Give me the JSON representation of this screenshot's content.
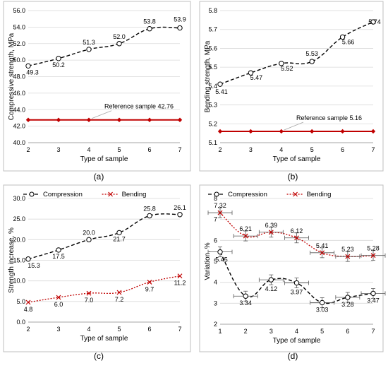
{
  "chart_data": [
    {
      "id": "a",
      "type": "line",
      "panel_label": "(a)",
      "xlabel": "Type of sample",
      "ylabel": "Compressive strength, MPa",
      "x": [
        2,
        3,
        4,
        5,
        6,
        7
      ],
      "xlim": [
        2,
        7
      ],
      "ylim": [
        40,
        56
      ],
      "yticks": [
        40,
        42,
        44,
        46,
        48,
        50,
        52,
        54,
        56
      ],
      "ytick_labels": [
        "40.0",
        "42.0",
        "44.0",
        "46.0",
        "48.0",
        "50.0",
        "52.0",
        "54.0",
        "56.0"
      ],
      "series": [
        {
          "values": [
            49.3,
            50.2,
            51.3,
            52.0,
            53.8,
            53.9
          ],
          "labels": [
            "49.3",
            "50.2",
            "51.3",
            "52.0",
            "53.8",
            "53.9"
          ],
          "style": "dashed",
          "color": "#000000",
          "marker": "circle"
        },
        {
          "values": [
            42.76,
            42.76,
            42.76,
            42.76,
            42.76,
            42.76
          ],
          "style": "solid",
          "color": "#c00000",
          "marker": "diamond"
        }
      ],
      "annotation": "Reference sample 42.76",
      "grid": true
    },
    {
      "id": "b",
      "type": "line",
      "panel_label": "(b)",
      "xlabel": "Type of sample",
      "ylabel": "Bending strength, MPa",
      "x": [
        2,
        3,
        4,
        5,
        6,
        7
      ],
      "xlim": [
        2,
        7
      ],
      "ylim": [
        5.1,
        5.8
      ],
      "yticks": [
        5.1,
        5.2,
        5.3,
        5.4,
        5.5,
        5.6,
        5.7,
        5.8
      ],
      "ytick_labels": [
        "5.1",
        "5.2",
        "5.3",
        "5.4",
        "5.5",
        "5.6",
        "5.7",
        "5.8"
      ],
      "series": [
        {
          "values": [
            5.41,
            5.47,
            5.52,
            5.53,
            5.66,
            5.74
          ],
          "labels": [
            "5.41",
            "5.47",
            "5.52",
            "5.53",
            "5.66",
            "5.74"
          ],
          "style": "dashed",
          "color": "#000000",
          "marker": "circle"
        },
        {
          "values": [
            5.16,
            5.16,
            5.16,
            5.16,
            5.16,
            5.16
          ],
          "style": "solid",
          "color": "#c00000",
          "marker": "diamond"
        }
      ],
      "annotation": "Reference sample 5.16",
      "grid": true
    },
    {
      "id": "c",
      "type": "line",
      "panel_label": "(c)",
      "xlabel": "Type of sample",
      "ylabel": "Strength increase, %",
      "x": [
        2,
        3,
        4,
        5,
        6,
        7
      ],
      "xlim": [
        2,
        7
      ],
      "ylim": [
        0,
        30
      ],
      "yticks": [
        0,
        5,
        10,
        15,
        20,
        25,
        30
      ],
      "ytick_labels": [
        "0.0",
        "5.0",
        "10.0",
        "15.0",
        "20.0",
        "25.0",
        "30.0"
      ],
      "legend": "top",
      "series": [
        {
          "name": "Compression",
          "values": [
            15.3,
            17.5,
            20.0,
            21.7,
            25.8,
            26.1
          ],
          "labels": [
            "15.3",
            "17.5",
            "20.0",
            "21.7",
            "25.8",
            "26.1"
          ],
          "style": "dashed",
          "color": "#000000",
          "marker": "circle"
        },
        {
          "name": "Bending",
          "values": [
            4.8,
            6.0,
            7.0,
            7.2,
            9.7,
            11.2
          ],
          "labels": [
            "4.8",
            "6.0",
            "7.0",
            "7.2",
            "9.7",
            "11.2"
          ],
          "style": "dotted",
          "color": "#c00000",
          "marker": "x"
        }
      ],
      "grid": true
    },
    {
      "id": "d",
      "type": "line",
      "panel_label": "(d)",
      "xlabel": "Type of sample",
      "ylabel": "Variation, %",
      "x": [
        1,
        2,
        3,
        4,
        5,
        6,
        7
      ],
      "xlim": [
        1,
        7
      ],
      "ylim": [
        2,
        8
      ],
      "yticks": [
        2,
        3,
        4,
        5,
        6,
        7,
        8
      ],
      "ytick_labels": [
        "2",
        "3",
        "4",
        "5",
        "6",
        "7",
        "8"
      ],
      "legend": "top",
      "series": [
        {
          "name": "Compression",
          "values": [
            5.45,
            3.34,
            4.12,
            3.97,
            3.03,
            3.28,
            3.47
          ],
          "labels": [
            "5.45",
            "3.34",
            "4.12",
            "3.97",
            "3.03",
            "3.28",
            "3.47"
          ],
          "style": "dashed",
          "color": "#000000",
          "marker": "circle"
        },
        {
          "name": "Bending",
          "values": [
            7.32,
            6.21,
            6.39,
            6.12,
            5.41,
            5.23,
            5.28
          ],
          "labels": [
            "7.32",
            "6.21",
            "6.39",
            "6.12",
            "5.41",
            "5.23",
            "5.28"
          ],
          "style": "dotted",
          "color": "#c00000",
          "marker": "x"
        }
      ],
      "error_bars": "x and y",
      "grid": true
    }
  ]
}
